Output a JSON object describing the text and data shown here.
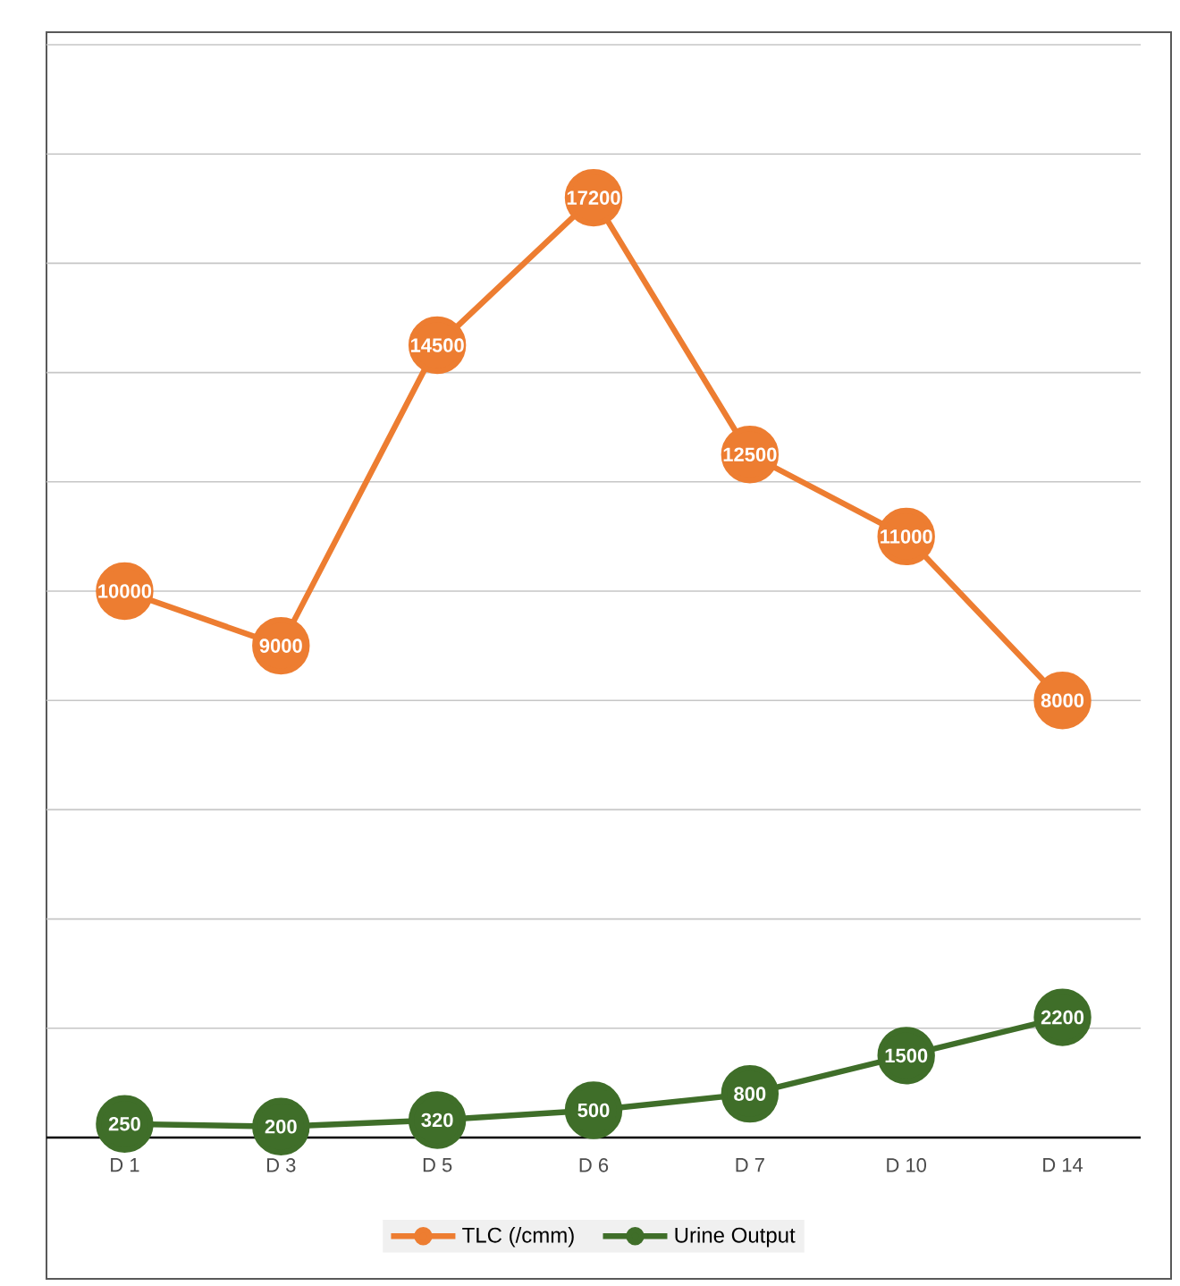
{
  "chart_data": {
    "type": "line",
    "categories": [
      "D 1",
      "D 3",
      "D 5",
      "D 6",
      "D 7",
      "D 10",
      "D 14"
    ],
    "series": [
      {
        "name": "TLC (/cmm)",
        "color": "#ed7d31",
        "values": [
          10000,
          9000,
          14500,
          17200,
          12500,
          11000,
          8000
        ]
      },
      {
        "name": "Urine Output",
        "color": "#3f6e29",
        "values": [
          250,
          200,
          320,
          500,
          800,
          1500,
          2200
        ]
      }
    ],
    "ylim": [
      0,
      20000
    ],
    "yticks": [
      {
        "value": 0,
        "label": null
      },
      {
        "value": 2000,
        "label": null
      },
      {
        "value": 4000,
        "label": null
      },
      {
        "value": 6000,
        "label": null
      },
      {
        "value": 8000,
        "label": null
      },
      {
        "value": 10000,
        "label": null
      },
      {
        "value": 12000,
        "label": null
      },
      {
        "value": 14000,
        "label": null
      },
      {
        "value": 16000,
        "label": null
      },
      {
        "value": 18000,
        "label": null
      },
      {
        "value": 20000,
        "label": null
      }
    ],
    "tick_labels": "x",
    "grid": "y",
    "legend": "bottom",
    "marker": "circle",
    "data_labels": true
  }
}
